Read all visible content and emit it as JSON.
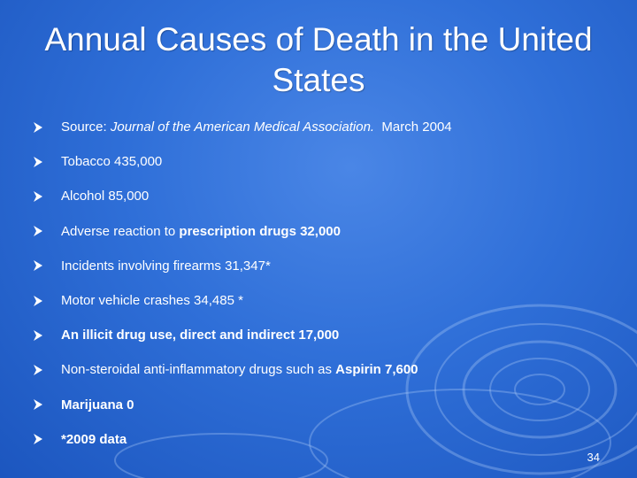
{
  "slide": {
    "title": "Annual Causes of Death in the United States",
    "page_number": "34",
    "colors": {
      "background": "#2f6fd8",
      "text": "#ffffff",
      "bullet": "#ffffff"
    },
    "bullet_icon": "arrowhead-bullet-icon",
    "bullets": [
      {
        "source_label": "Source: ",
        "source_journal": "Journal of the American Medical Association.",
        "source_date": "  March 2004"
      },
      {
        "text": "Tobacco 435,000"
      },
      {
        "text": "Alcohol 85,000"
      },
      {
        "prefix": "Adverse reaction to ",
        "bold": "prescription drugs 32,000"
      },
      {
        "text": "Incidents involving firearms 31,347*"
      },
      {
        "text": "Motor vehicle crashes 34,485 *"
      },
      {
        "bold": "An illicit drug use, direct and indirect 17,000"
      },
      {
        "prefix": "Non-steroidal anti-inflammatory drugs such as ",
        "bold": "Aspirin 7,600"
      },
      {
        "bold": "Marijuana 0"
      },
      {
        "bold": "*2009 data"
      }
    ]
  }
}
